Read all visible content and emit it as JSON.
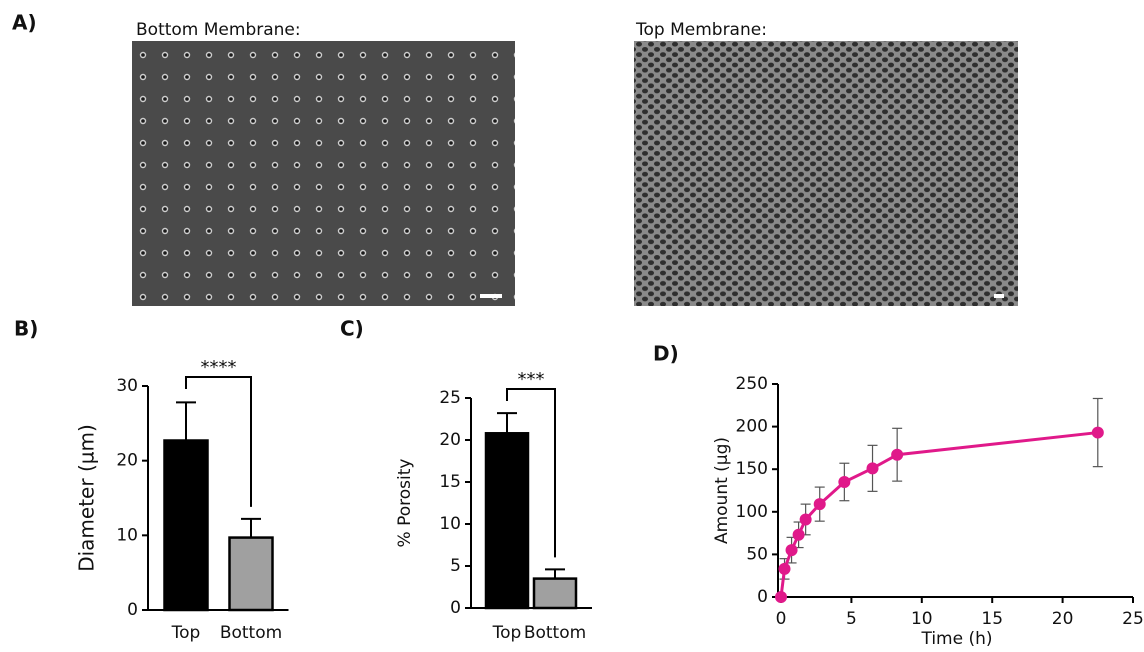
{
  "figure": {
    "panel_a": {
      "label": "A)",
      "captions": [
        "Bottom Membrane:",
        "Top Membrane:"
      ]
    }
  },
  "chart_data": [
    {
      "type": "bar",
      "panel_label": "B)",
      "ylabel": "Diameter (µm)",
      "categories": [
        "Top",
        "Bottom"
      ],
      "values": [
        22.7,
        9.7
      ],
      "errors": [
        5.1,
        2.5
      ],
      "colors": [
        "#000000",
        "#a0a0a0"
      ],
      "ylim": [
        0,
        30
      ],
      "yticks": [
        0,
        10,
        20,
        30
      ],
      "significance": "****"
    },
    {
      "type": "bar",
      "panel_label": "C)",
      "ylabel": "% Porosity",
      "categories": [
        "Top",
        "Bottom"
      ],
      "values": [
        20.8,
        3.5
      ],
      "errors": [
        2.4,
        1.1
      ],
      "colors": [
        "#000000",
        "#a0a0a0"
      ],
      "ylim": [
        0,
        25
      ],
      "yticks": [
        0,
        5,
        10,
        15,
        20,
        25
      ],
      "significance": "***"
    },
    {
      "type": "line",
      "panel_label": "D)",
      "xlabel": "Time (h)",
      "ylabel": "Amount (µg)",
      "x": [
        0,
        0.25,
        0.75,
        1.25,
        1.75,
        2.75,
        4.5,
        6.5,
        8.25,
        22.5
      ],
      "values": [
        0,
        33,
        55,
        73,
        91,
        109,
        135,
        151,
        167,
        193
      ],
      "errors": [
        0,
        12,
        15,
        15,
        18,
        20,
        22,
        27,
        31,
        40
      ],
      "color": "#e0198a",
      "xlim": [
        0,
        25
      ],
      "xticks": [
        0,
        5,
        10,
        15,
        20,
        25
      ],
      "ylim": [
        0,
        250
      ],
      "yticks": [
        0,
        50,
        100,
        150,
        200,
        250
      ]
    }
  ]
}
